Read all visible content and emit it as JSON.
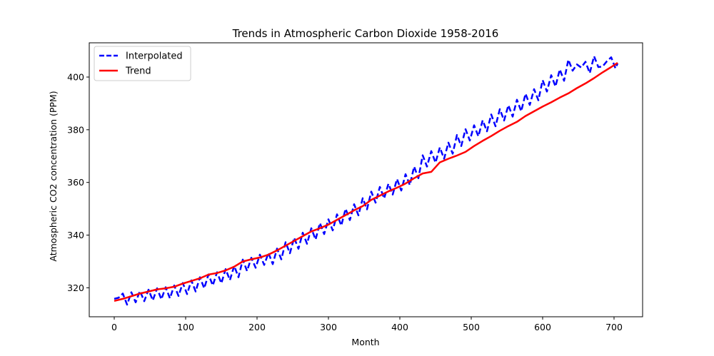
{
  "chart_data": {
    "type": "line",
    "title": "Trends in Atmospheric Carbon Dioxide 1958-2016",
    "xlabel": "Month",
    "ylabel": "Atmospheric CO2 concentration (PPM)",
    "xlim": [
      -35,
      740
    ],
    "ylim": [
      309,
      413
    ],
    "xticks": [
      0,
      100,
      200,
      300,
      400,
      500,
      600,
      700
    ],
    "yticks": [
      320,
      340,
      360,
      380,
      400
    ],
    "xtick_labels": [
      "0",
      "100",
      "200",
      "300",
      "400",
      "500",
      "600",
      "700"
    ],
    "ytick_labels": [
      "320",
      "340",
      "360",
      "380",
      "400"
    ],
    "grid": false,
    "legend_position": "top-left",
    "series": [
      {
        "name": "Interpolated",
        "color": "#0000ff",
        "style": "dashed",
        "x": [
          0,
          6,
          12,
          18,
          24,
          30,
          36,
          42,
          48,
          54,
          60,
          66,
          72,
          78,
          84,
          90,
          96,
          102,
          108,
          114,
          120,
          126,
          132,
          138,
          144,
          150,
          156,
          162,
          168,
          174,
          180,
          186,
          192,
          198,
          204,
          210,
          216,
          222,
          228,
          234,
          240,
          246,
          252,
          258,
          264,
          270,
          276,
          282,
          288,
          294,
          300,
          306,
          312,
          318,
          324,
          330,
          336,
          342,
          348,
          354,
          360,
          366,
          372,
          378,
          384,
          390,
          396,
          402,
          408,
          414,
          420,
          426,
          432,
          438,
          444,
          450,
          456,
          462,
          468,
          474,
          480,
          486,
          492,
          498,
          504,
          510,
          516,
          522,
          528,
          534,
          540,
          546,
          552,
          558,
          564,
          570,
          576,
          582,
          588,
          594,
          600,
          606,
          612,
          618,
          624,
          630,
          636,
          642,
          648,
          654,
          660,
          666,
          672,
          678,
          684,
          690,
          696,
          702,
          705
        ],
        "y": [
          315.8,
          316.2,
          317.8,
          313.6,
          318.3,
          314.5,
          318.8,
          314.9,
          319.3,
          315.2,
          319.8,
          315.6,
          320.2,
          316.0,
          320.9,
          316.9,
          321.8,
          317.6,
          322.8,
          318.6,
          324.0,
          319.8,
          325.1,
          320.9,
          325.9,
          321.7,
          327.1,
          322.9,
          328.3,
          324.0,
          330.7,
          326.4,
          331.4,
          327.6,
          332.6,
          328.7,
          333.2,
          329.0,
          334.9,
          330.8,
          337.3,
          333.1,
          339.0,
          334.8,
          340.9,
          336.7,
          342.6,
          338.3,
          344.6,
          340.4,
          346.0,
          341.8,
          347.9,
          343.6,
          350.0,
          345.7,
          351.7,
          347.5,
          354.0,
          349.8,
          356.5,
          352.3,
          358.3,
          353.9,
          359.5,
          355.4,
          361.3,
          356.9,
          363.1,
          359.0,
          366.0,
          361.6,
          370.3,
          366.0,
          371.9,
          367.5,
          373.3,
          369.0,
          375.1,
          370.9,
          378.0,
          373.8,
          380.2,
          375.9,
          381.7,
          377.5,
          383.6,
          379.4,
          385.8,
          381.3,
          387.8,
          383.5,
          389.3,
          385.0,
          391.4,
          387.0,
          393.7,
          389.4,
          395.4,
          391.2,
          398.8,
          394.5,
          400.7,
          396.4,
          402.9,
          398.6,
          406.6,
          402.4,
          404.8,
          403.6,
          405.8,
          401.5,
          407.9,
          403.8,
          404.0,
          406.0,
          407.5,
          403.3,
          405.2
        ]
      },
      {
        "name": "Trend",
        "color": "#ff0000",
        "style": "solid",
        "x": [
          0,
          12,
          24,
          36,
          48,
          60,
          72,
          84,
          96,
          108,
          120,
          132,
          144,
          156,
          168,
          180,
          192,
          204,
          216,
          228,
          240,
          252,
          264,
          276,
          288,
          300,
          312,
          324,
          336,
          348,
          360,
          372,
          384,
          396,
          408,
          420,
          432,
          444,
          456,
          468,
          480,
          492,
          504,
          516,
          528,
          540,
          552,
          564,
          576,
          588,
          600,
          612,
          624,
          636,
          648,
          660,
          672,
          684,
          696,
          705
        ],
        "y": [
          315.0,
          315.8,
          316.8,
          317.8,
          318.6,
          319.4,
          319.8,
          320.4,
          321.6,
          322.6,
          323.6,
          325.0,
          325.6,
          326.6,
          328.0,
          330.0,
          330.8,
          331.5,
          332.6,
          334.2,
          336.0,
          337.8,
          339.6,
          341.4,
          342.6,
          344.0,
          345.8,
          347.6,
          349.4,
          351.0,
          353.4,
          355.0,
          356.6,
          358.0,
          359.6,
          361.6,
          363.4,
          364.0,
          367.6,
          369.0,
          370.2,
          371.6,
          373.8,
          375.8,
          377.6,
          379.6,
          381.4,
          383.0,
          385.2,
          387.0,
          388.8,
          390.4,
          392.2,
          393.8,
          395.8,
          397.6,
          399.6,
          401.8,
          403.8,
          405.4
        ]
      }
    ]
  }
}
